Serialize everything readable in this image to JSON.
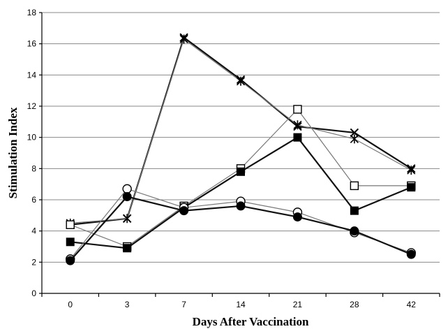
{
  "chart_data": {
    "type": "line",
    "xlabel": "Days After Vaccination",
    "ylabel": "Stimulation Index",
    "categories": [
      "0",
      "3",
      "7",
      "14",
      "21",
      "28",
      "42"
    ],
    "ylim": [
      0,
      18
    ],
    "yticks": [
      0,
      2,
      4,
      6,
      8,
      10,
      12,
      14,
      16,
      18
    ],
    "grid": true,
    "series": [
      {
        "marker": "x-cross",
        "values": [
          4.4,
          4.8,
          16.4,
          13.7,
          10.7,
          10.3,
          8.0
        ]
      },
      {
        "marker": "star",
        "values": [
          4.5,
          4.8,
          16.3,
          13.6,
          10.8,
          9.9,
          7.9
        ]
      },
      {
        "marker": "open-square",
        "values": [
          4.4,
          3.0,
          5.6,
          8.0,
          11.8,
          6.9,
          6.9
        ]
      },
      {
        "marker": "filled-square",
        "values": [
          3.3,
          2.9,
          5.5,
          7.8,
          10.0,
          5.3,
          6.8
        ]
      },
      {
        "marker": "open-circle",
        "values": [
          2.2,
          6.7,
          5.5,
          5.9,
          5.2,
          3.9,
          2.6
        ]
      },
      {
        "marker": "filled-circle",
        "values": [
          2.1,
          6.2,
          5.3,
          5.6,
          4.9,
          4.0,
          2.5
        ]
      }
    ]
  }
}
